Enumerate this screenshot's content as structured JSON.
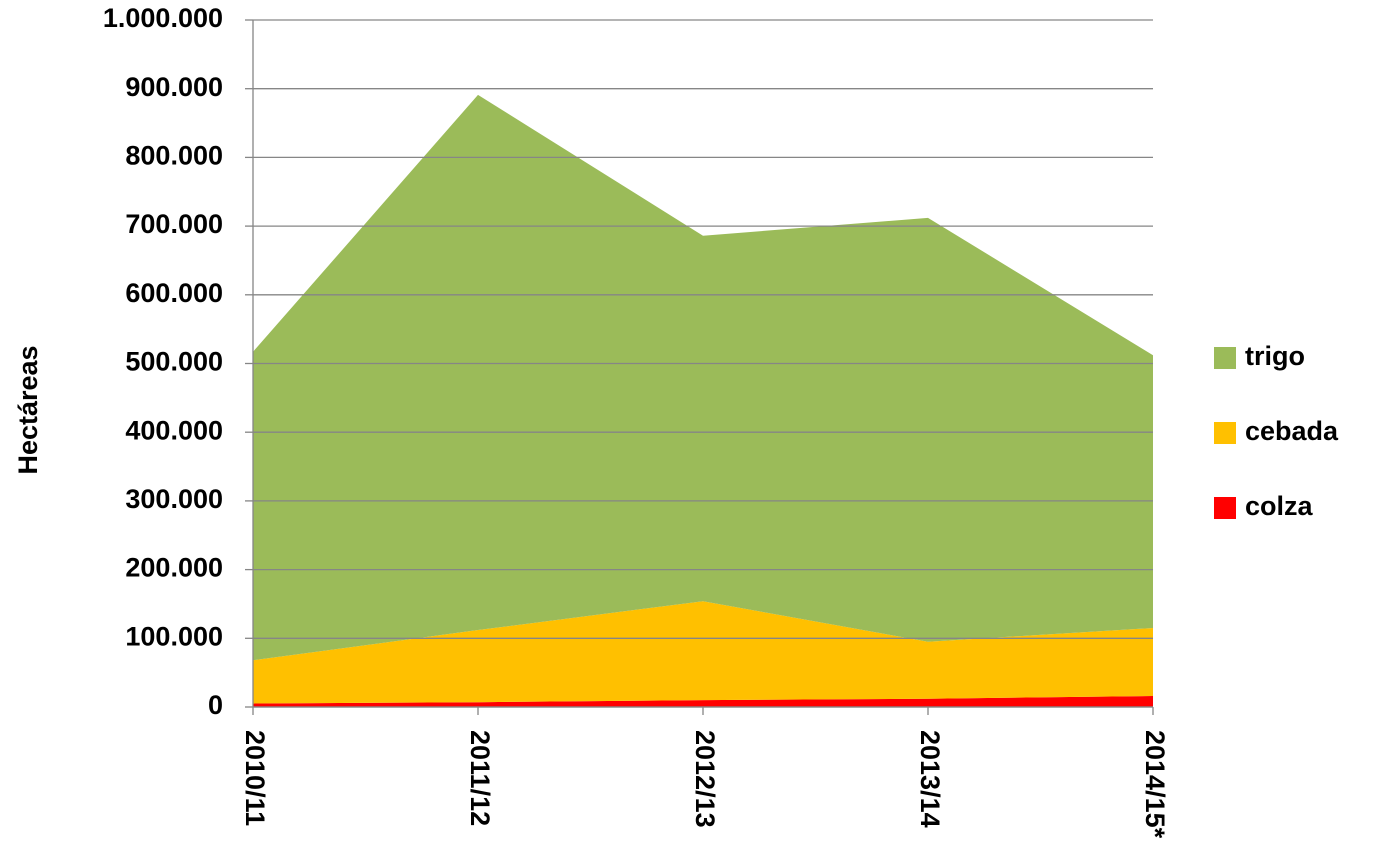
{
  "chart_data": {
    "type": "stacked_area",
    "y_label": "Hectáreas",
    "categories": [
      "2010/11",
      "2011/12",
      "2012/13",
      "2013/14",
      "2014/15*"
    ],
    "series": [
      {
        "name": "colza",
        "color": "#ff0000",
        "values": [
          5000,
          7000,
          10000,
          12000,
          16000
        ]
      },
      {
        "name": "cebada",
        "color": "#ffc000",
        "values": [
          63000,
          105000,
          144000,
          83000,
          99000
        ]
      },
      {
        "name": "trigo",
        "color": "#9bbb59",
        "values": [
          449000,
          779000,
          532000,
          617000,
          397000
        ]
      }
    ],
    "ylim": [
      0,
      1000000
    ],
    "yticks": [
      0,
      {
        "value": 100000,
        "label": "100.000"
      },
      {
        "value": 200000,
        "label": "200.000"
      },
      {
        "value": 300000,
        "label": "300.000"
      },
      {
        "value": 400000,
        "label": "400.000"
      },
      {
        "value": 500000,
        "label": "500.000"
      },
      {
        "value": 600000,
        "label": "600.000"
      },
      {
        "value": 700000,
        "label": "700.000"
      },
      {
        "value": 800000,
        "label": "800.000"
      },
      {
        "value": 900000,
        "label": "900.000"
      },
      {
        "value": 1000000,
        "label": "1.000.000"
      }
    ],
    "grid": true,
    "legend": "right"
  }
}
